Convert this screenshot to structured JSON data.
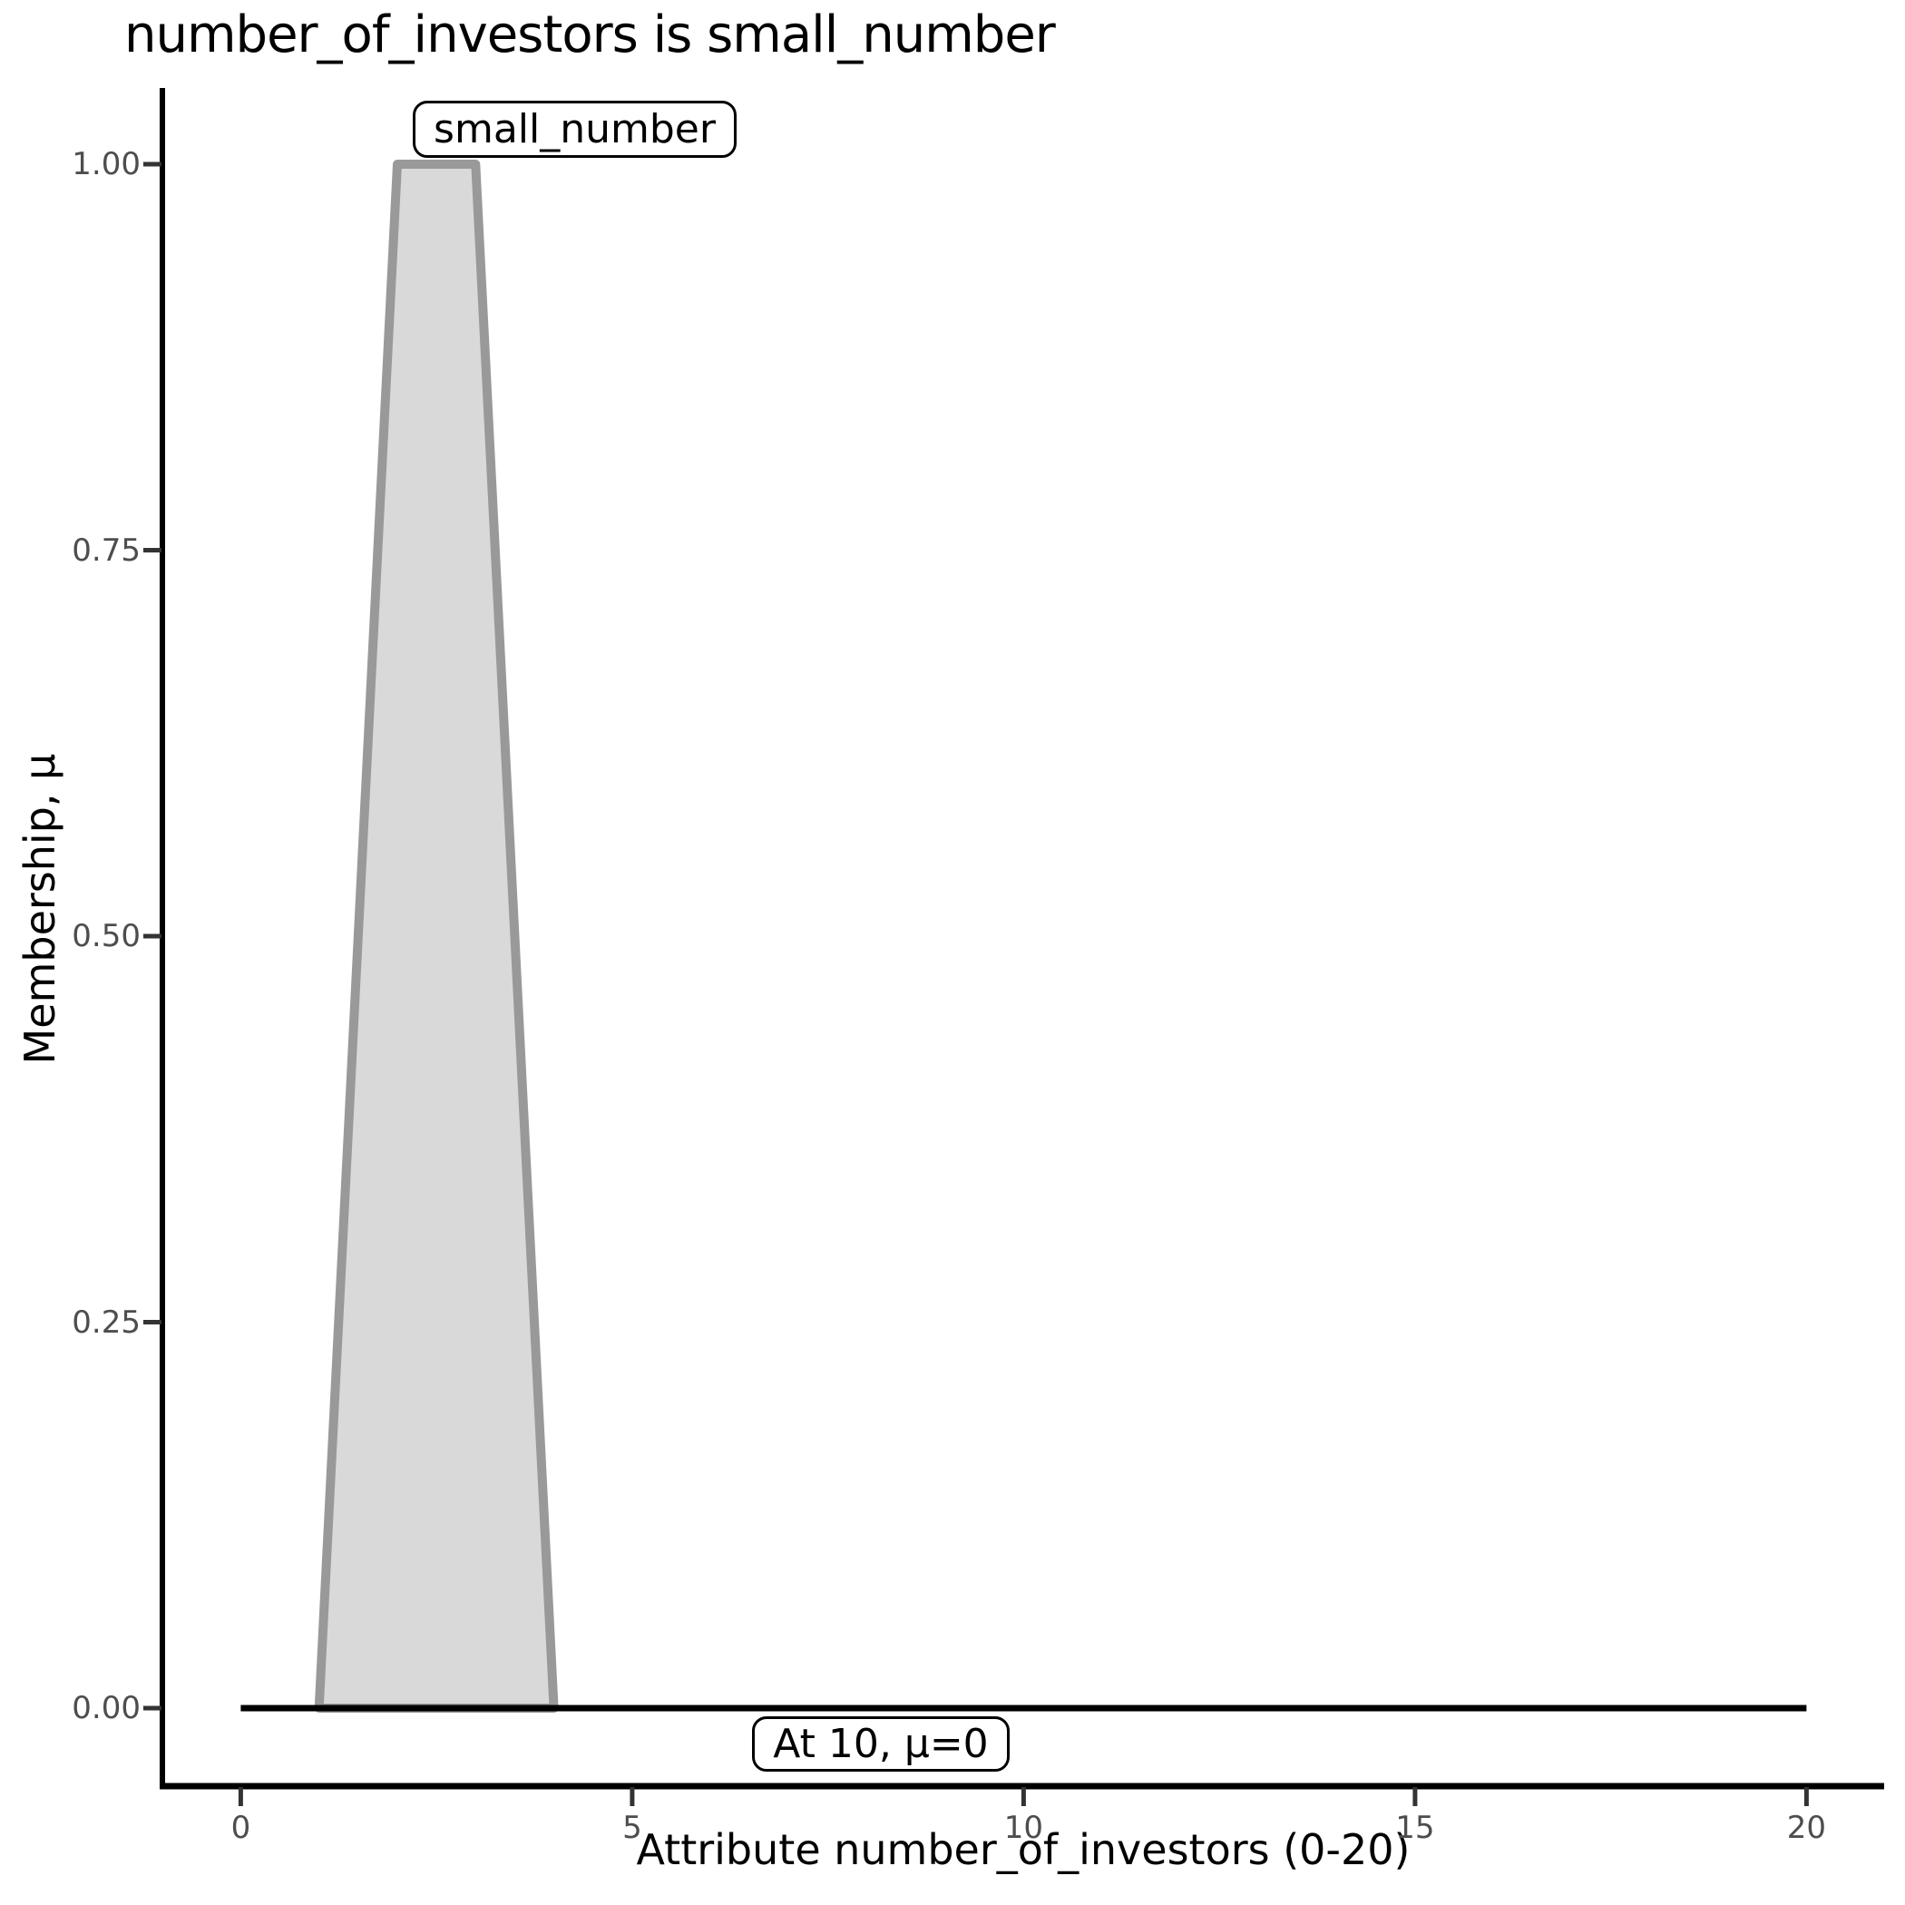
{
  "chart_data": {
    "type": "area",
    "title": "number_of_investors is small_number",
    "xlabel": "Attribute number_of_investors (0-20)",
    "ylabel": "Membership, μ",
    "xlim": [
      0,
      20
    ],
    "ylim": [
      0,
      1
    ],
    "grid": false,
    "legend": "none",
    "x_ticks": {
      "values": [
        0,
        5,
        10,
        15,
        20
      ],
      "labels": [
        "0",
        "5",
        "10",
        "15",
        "20"
      ]
    },
    "y_ticks": {
      "values": [
        0,
        0.25,
        0.5,
        0.75,
        1.0
      ],
      "labels": [
        "0.00",
        "0.25",
        "0.50",
        "0.75",
        "1.00"
      ]
    },
    "series": [
      {
        "name": "small_number",
        "shape": "trapezoidal_membership_function",
        "points": [
          [
            1,
            0
          ],
          [
            2,
            1
          ],
          [
            3,
            1
          ],
          [
            4,
            0
          ]
        ],
        "fill_color": "#d9d9d9",
        "stroke_color": "#999999"
      }
    ],
    "baseline": {
      "y": 0,
      "x_start": 0,
      "x_end": 20,
      "color": "#000000"
    },
    "annotations": [
      {
        "text": "small_number",
        "anchor_x": 2.5,
        "anchor_y": 1.0
      },
      {
        "text": "At 10, μ=0",
        "anchor_x": 10,
        "anchor_y": 0
      }
    ],
    "colors": {
      "tick_label": "#4d4d4d",
      "axis_spine": "#000000",
      "tick_mark": "#333333",
      "membership_fill": "#d9d9d9",
      "membership_stroke": "#999999",
      "baseline": "#000000",
      "annotation_border": "#000000",
      "annotation_background": "#ffffff"
    }
  }
}
